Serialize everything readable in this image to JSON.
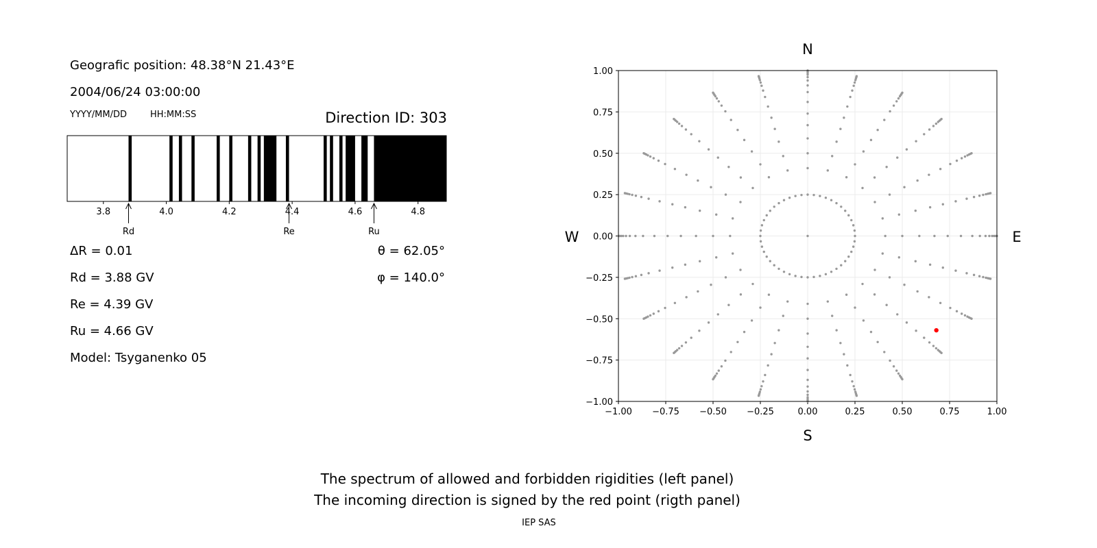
{
  "left_panel": {
    "position": "Geografic position: 48.38°N 21.43°E",
    "datetime": "2004/06/24 03:00:00",
    "date_format": "YYYY/MM/DD",
    "time_format": "HH:MM:SS",
    "direction_id": "Direction ID: 303",
    "delta_r": "ΔR = 0.01",
    "rd": "Rd = 3.88 GV",
    "re": "Re = 4.39 GV",
    "ru": "Ru = 4.66 GV",
    "model": "Model: Tsyganenko 05",
    "theta": "θ = 62.05°",
    "phi": "φ = 140.0°"
  },
  "captions": {
    "line1": "The spectrum of allowed and forbidden rigidities (left panel)",
    "line2": "The incoming direction is signed by the red point (rigth panel)",
    "credit": "IEP SAS"
  },
  "chart_data": [
    {
      "type": "bar",
      "kind": "rigidity-spectrum",
      "xlim": [
        3.685,
        4.89
      ],
      "xticks": [
        "3.8",
        "4.0",
        "4.2",
        "4.4",
        "4.6",
        "4.8"
      ],
      "forbidden_bands": [
        [
          3.88,
          3.89
        ],
        [
          4.01,
          4.02
        ],
        [
          4.04,
          4.05
        ],
        [
          4.08,
          4.09
        ],
        [
          4.16,
          4.17
        ],
        [
          4.2,
          4.21
        ],
        [
          4.26,
          4.27
        ],
        [
          4.29,
          4.3
        ],
        [
          4.31,
          4.35
        ],
        [
          4.38,
          4.39
        ],
        [
          4.5,
          4.51
        ],
        [
          4.52,
          4.53
        ],
        [
          4.55,
          4.56
        ],
        [
          4.57,
          4.6
        ],
        [
          4.62,
          4.64
        ],
        [
          4.66,
          4.89
        ]
      ],
      "markers": [
        {
          "label": "Rd",
          "value": 3.88
        },
        {
          "label": "Re",
          "value": 4.39
        },
        {
          "label": "Ru",
          "value": 4.66
        }
      ],
      "colors": {
        "forbidden": "#000000",
        "allowed": "#ffffff"
      }
    },
    {
      "type": "scatter",
      "kind": "direction-map",
      "xlim": [
        -1,
        1
      ],
      "ylim": [
        -1,
        1
      ],
      "xticks": [
        "−1.00",
        "−0.75",
        "−0.50",
        "−0.25",
        "0.00",
        "0.25",
        "0.50",
        "0.75",
        "1.00"
      ],
      "yticks": [
        "−1.00",
        "−0.75",
        "−0.50",
        "−0.25",
        "0.00",
        "0.25",
        "0.50",
        "0.75",
        "1.00"
      ],
      "grid": true,
      "compass": {
        "n": "N",
        "s": "S",
        "w": "W",
        "e": "E"
      },
      "grid_points": {
        "spoke_azimuth_step_deg": 15,
        "spoke_radii": [
          0.41,
          0.5,
          0.59,
          0.67,
          0.74,
          0.81,
          0.87,
          0.91,
          0.94,
          0.96,
          0.975,
          0.985,
          0.993,
          1.0
        ],
        "inner_ring_radius": 0.25,
        "inner_ring_count": 48,
        "center": [
          0,
          0
        ]
      },
      "selected_point": {
        "x": 0.68,
        "y": -0.57
      },
      "colors": {
        "points": "#999999",
        "selected": "#ff0000"
      }
    }
  ]
}
